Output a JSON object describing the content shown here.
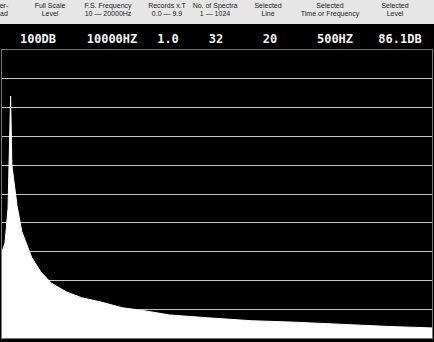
{
  "header": {
    "labels": [
      "er-\nad",
      "Full Scale\nLevel",
      "F.S. Frequency\n10 — 20000Hz",
      "Records x.T\n0.0 — 9.9",
      "No. of Spectra\n1 — 1024",
      "Selected\nLine",
      "Selected\nTime or Frequency",
      "Selected\nLevel"
    ]
  },
  "readouts": [
    "100DB",
    "10000HZ",
    "1.0",
    "32",
    "20",
    "500HZ",
    "86.1DB"
  ],
  "chart_data": {
    "type": "area",
    "x": [
      0,
      70,
      140,
      185,
      200,
      230,
      280,
      350,
      460,
      690,
      900,
      1150,
      1500,
      1850,
      2300,
      2800,
      3300,
      3900,
      4800,
      5800,
      6800,
      8000,
      9000,
      10000
    ],
    "values": [
      30,
      33,
      45,
      82,
      84,
      60,
      54,
      46,
      37,
      28,
      23,
      19,
      16,
      14,
      12.5,
      10.5,
      9.5,
      8,
      7,
      6,
      5.5,
      4.6,
      4,
      3.5
    ],
    "color": "#ffffff",
    "xlim": [
      0,
      10000
    ],
    "ylim": [
      0,
      100
    ],
    "yticks": [
      0,
      10,
      20,
      30,
      40,
      50,
      60,
      70,
      80,
      90,
      100
    ],
    "grid": true,
    "tick_labels": false
  }
}
